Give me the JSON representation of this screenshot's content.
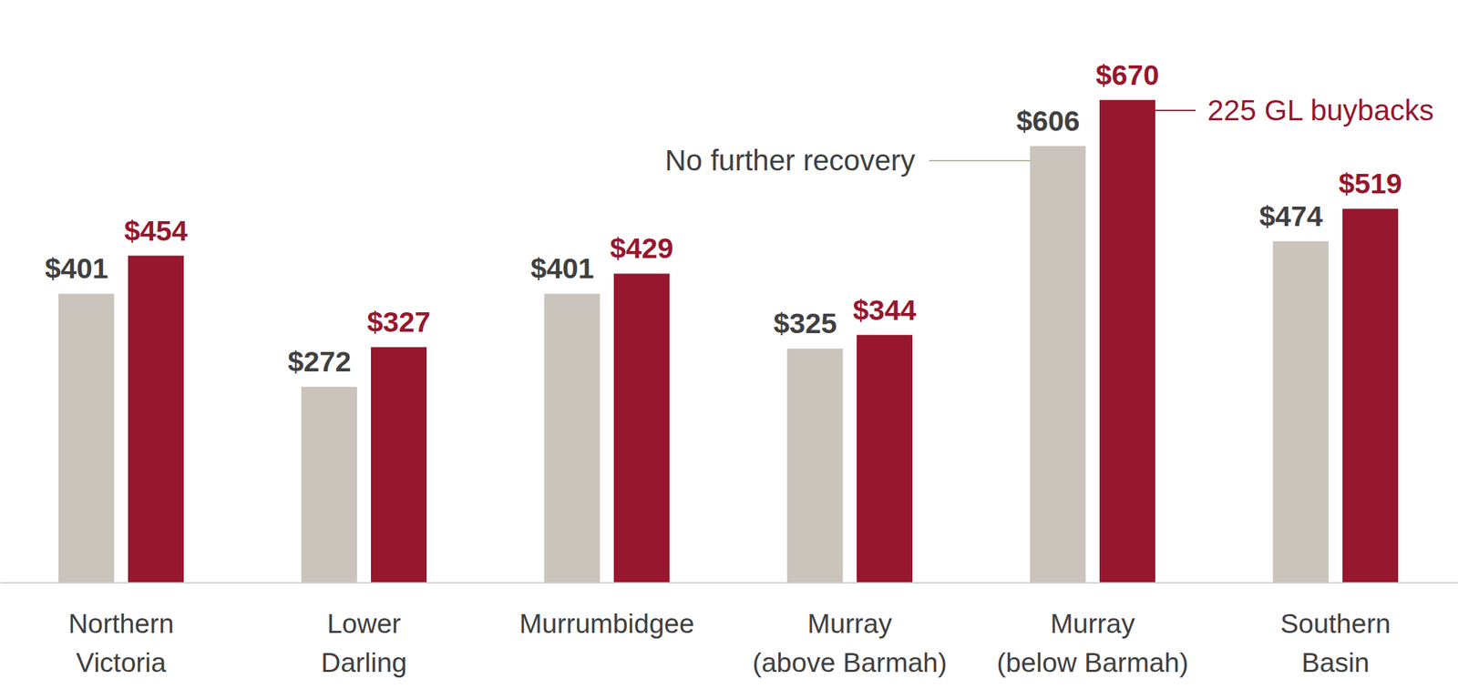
{
  "chart_data": {
    "type": "bar",
    "categories": [
      [
        "Northern",
        "Victoria"
      ],
      [
        "Lower",
        "Darling"
      ],
      [
        "Murrumbidgee"
      ],
      [
        "Murray",
        "(above Barmah)"
      ],
      [
        "Murray",
        "(below Barmah)"
      ],
      [
        "Southern",
        "Basin"
      ]
    ],
    "series": [
      {
        "name": "No further recovery",
        "color": "#cbc4bd",
        "values": [
          401,
          272,
          401,
          325,
          606,
          474
        ],
        "value_labels": [
          "$401",
          "$272",
          "$401",
          "$325",
          "$606",
          "$474"
        ]
      },
      {
        "name": "225 GL buybacks",
        "color": "#96172e",
        "values": [
          454,
          327,
          429,
          344,
          670,
          519
        ],
        "value_labels": [
          "$454",
          "$327",
          "$429",
          "$344",
          "$670",
          "$519"
        ]
      }
    ],
    "ylim": [
      0,
      800
    ],
    "tick_labels": "x",
    "data_labels": true
  }
}
